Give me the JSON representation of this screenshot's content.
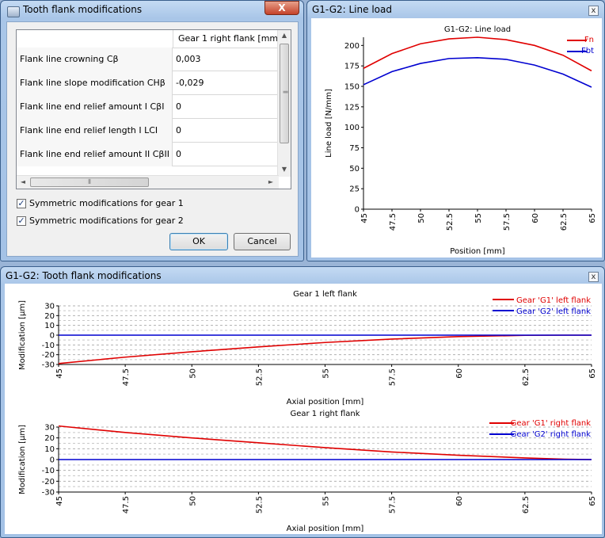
{
  "dialog": {
    "title": "Tooth flank modifications",
    "close_glyph": "X",
    "column_header": "Gear 1 right flank [mm]",
    "rows": [
      {
        "label": "Flank line crowning Cβ",
        "value": "0,003"
      },
      {
        "label": "Flank line slope modification CHβ",
        "value": "-0,029"
      },
      {
        "label": "Flank line end relief amount I CβI",
        "value": "0"
      },
      {
        "label": "Flank line end relief length I LCI",
        "value": "0"
      },
      {
        "label": "Flank line end relief amount II CβII",
        "value": "0"
      }
    ],
    "symmetric_gear1": {
      "label": "Symmetric modifications for gear 1",
      "checked": true
    },
    "symmetric_gear2": {
      "label": "Symmetric modifications for gear 2",
      "checked": true
    },
    "ok_label": "OK",
    "cancel_label": "Cancel",
    "scroll_left": "◄",
    "scroll_right": "►",
    "scroll_up": "▲",
    "scroll_down": "▼",
    "grip": "⦀"
  },
  "lineload_window": {
    "title": "G1-G2: Line load",
    "close_glyph": "x"
  },
  "modifications_window": {
    "title": "G1-G2: Tooth flank modifications",
    "close_glyph": "x"
  },
  "colors": {
    "red": "#e00000",
    "blue": "#0000d0"
  },
  "chart_data": [
    {
      "type": "line",
      "title": "G1-G2: Line load",
      "xlabel": "Position [mm]",
      "ylabel": "Line load [N/mm]",
      "xlim": [
        45,
        65
      ],
      "ylim": [
        0,
        210
      ],
      "xticks": [
        45,
        47.5,
        50,
        52.5,
        55,
        57.5,
        60,
        62.5,
        65
      ],
      "yticks": [
        0,
        25,
        50,
        75,
        100,
        125,
        150,
        175,
        200
      ],
      "grid": false,
      "legend": "top-right",
      "series": [
        {
          "name": "Fn",
          "color": "#e00000",
          "x": [
            45,
            47.5,
            50,
            52.5,
            55,
            57.5,
            60,
            62.5,
            65
          ],
          "y": [
            172,
            190,
            202,
            208,
            210,
            207,
            200,
            188,
            169
          ]
        },
        {
          "name": "Fbt",
          "color": "#0000d0",
          "x": [
            45,
            47.5,
            50,
            52.5,
            55,
            57.5,
            60,
            62.5,
            65
          ],
          "y": [
            152,
            168,
            178,
            184,
            185,
            183,
            176,
            165,
            149
          ]
        }
      ]
    },
    {
      "type": "line",
      "title": "Gear 1 left flank",
      "xlabel": "Axial position [mm]",
      "ylabel": "Modification [μm]",
      "xlim": [
        45,
        65
      ],
      "ylim": [
        -30,
        30
      ],
      "xticks": [
        45,
        47.5,
        50,
        52.5,
        55,
        57.5,
        60,
        62.5,
        65
      ],
      "yticks": [
        -30,
        -20,
        -10,
        0,
        10,
        20,
        30
      ],
      "grid": true,
      "legend": "top-right",
      "series": [
        {
          "name": "Gear 'G1' left flank",
          "color": "#e00000",
          "x": [
            45,
            47.5,
            50,
            52.5,
            55,
            57.5,
            60,
            62.5,
            64,
            65
          ],
          "y": [
            -29,
            -22.5,
            -17,
            -12,
            -7.5,
            -4,
            -1.5,
            -0.2,
            0,
            0
          ]
        },
        {
          "name": "Gear 'G2' left flank",
          "color": "#0000d0",
          "x": [
            45,
            65
          ],
          "y": [
            0,
            0
          ]
        }
      ]
    },
    {
      "type": "line",
      "title": "Gear 1 right flank",
      "xlabel": "Axial position [mm]",
      "ylabel": "Modification [μm]",
      "xlim": [
        45,
        65
      ],
      "ylim": [
        -30,
        30
      ],
      "xticks": [
        45,
        47.5,
        50,
        52.5,
        55,
        57.5,
        60,
        62.5,
        65
      ],
      "yticks": [
        -30,
        -20,
        -10,
        0,
        10,
        20,
        30
      ],
      "grid": true,
      "legend": "top-right",
      "series": [
        {
          "name": "Gear 'G1' right flank",
          "color": "#e00000",
          "x": [
            45,
            47.5,
            50,
            52.5,
            55,
            57.5,
            60,
            62.5,
            64,
            65
          ],
          "y": [
            31,
            25,
            20,
            15.5,
            11,
            7,
            4,
            1.5,
            0.3,
            0
          ]
        },
        {
          "name": "Gear 'G2' right flank",
          "color": "#0000d0",
          "x": [
            45,
            65
          ],
          "y": [
            0,
            0
          ]
        }
      ]
    }
  ]
}
